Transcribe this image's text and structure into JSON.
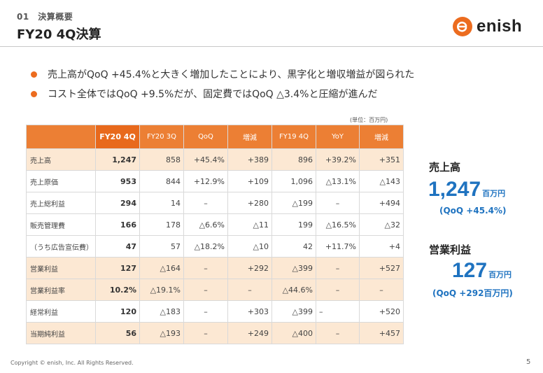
{
  "header": {
    "section": "01　決算概要",
    "title": "FY20 4Q決算",
    "logo_text": "enish"
  },
  "bullets": [
    "売上高がQoQ +45.4%と大きく増加したことにより、黒字化と増収増益が図られた",
    "コスト全体ではQoQ +9.5%だが、固定費ではQoQ △3.4%と圧縮が進んだ"
  ],
  "unit_note": "(単位：百万円)",
  "table": {
    "headers": [
      "",
      "FY20 4Q",
      "FY20 3Q",
      "QoQ",
      "増減",
      "FY19 4Q",
      "YoY",
      "増減"
    ],
    "rows": [
      [
        "売上高",
        "1,247",
        "858",
        "+45.4%",
        "+389",
        "896",
        "+39.2%",
        "+351"
      ],
      [
        "売上原価",
        "953",
        "844",
        "+12.9%",
        "+109",
        "1,096",
        "△13.1%",
        "△143"
      ],
      [
        "売上総利益",
        "294",
        "14",
        "–",
        "+280",
        "△199",
        "–",
        "+494"
      ],
      [
        "販売管理費",
        "166",
        "178",
        "△6.6%",
        "△11",
        "199",
        "△16.5%",
        "△32"
      ],
      [
        "（うち広告宣伝費）",
        "47",
        "57",
        "△18.2%",
        "△10",
        "42",
        "+11.7%",
        "+4"
      ],
      [
        "営業利益",
        "127",
        "△164",
        "–",
        "+292",
        "△399",
        "–",
        "+527"
      ],
      [
        "営業利益率",
        "10.2%",
        "△19.1%",
        "–",
        "–",
        "△44.6%",
        "–",
        "–"
      ],
      [
        "経常利益",
        "120",
        "△183",
        "–",
        "+303",
        "△399",
        "–",
        "+520"
      ],
      [
        "当期純利益",
        "56",
        "△193",
        "–",
        "+249",
        "△400",
        "–",
        "+457"
      ]
    ]
  },
  "kpi": {
    "sales_label": "売上高",
    "sales_value": "1,247",
    "sales_unit": "百万円",
    "sales_sub": "(QoQ +45.4%)",
    "op_label": "営業利益",
    "op_value": "127",
    "op_unit": "百万円",
    "op_sub": "(QoQ +292百万円)"
  },
  "footer": {
    "copyright": "Copyright © enish, Inc. All Rights Reserved.",
    "page": "5"
  },
  "colors": {
    "accent": "#ec6c1f",
    "header_bg": "#ec7f34",
    "highlight_bg": "#fce8d3",
    "kpi_blue": "#1f73c0"
  }
}
